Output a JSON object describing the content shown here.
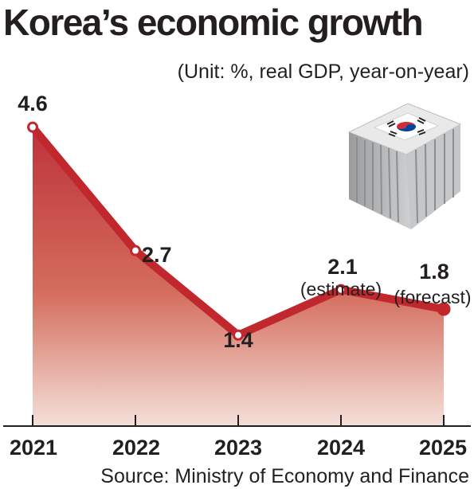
{
  "chart_data": {
    "type": "area",
    "title": "Korea’s economic growth",
    "subtitle": "(Unit: %, real GDP, year-on-year)",
    "source": "Source: Ministry of Economy and Finance",
    "categories": [
      "2021",
      "2022",
      "2023",
      "2024",
      "2025"
    ],
    "values": [
      4.6,
      2.7,
      1.4,
      2.1,
      1.8
    ],
    "value_labels": [
      "4.6",
      "2.7",
      "1.4",
      "2.1",
      "1.8"
    ],
    "annotations": [
      "",
      "",
      "",
      "(estimate)",
      "(forecast)"
    ],
    "ylim": [
      0,
      5
    ],
    "grid": false,
    "legend": "none",
    "colors": {
      "line": "#c0282d",
      "fill_top": "#b8202a",
      "fill_bottom": "#f3ddd6",
      "axis": "#231f20",
      "marker_fill": "#ffffff"
    },
    "illustration": "shipping-container-with-korean-flag-icon"
  }
}
